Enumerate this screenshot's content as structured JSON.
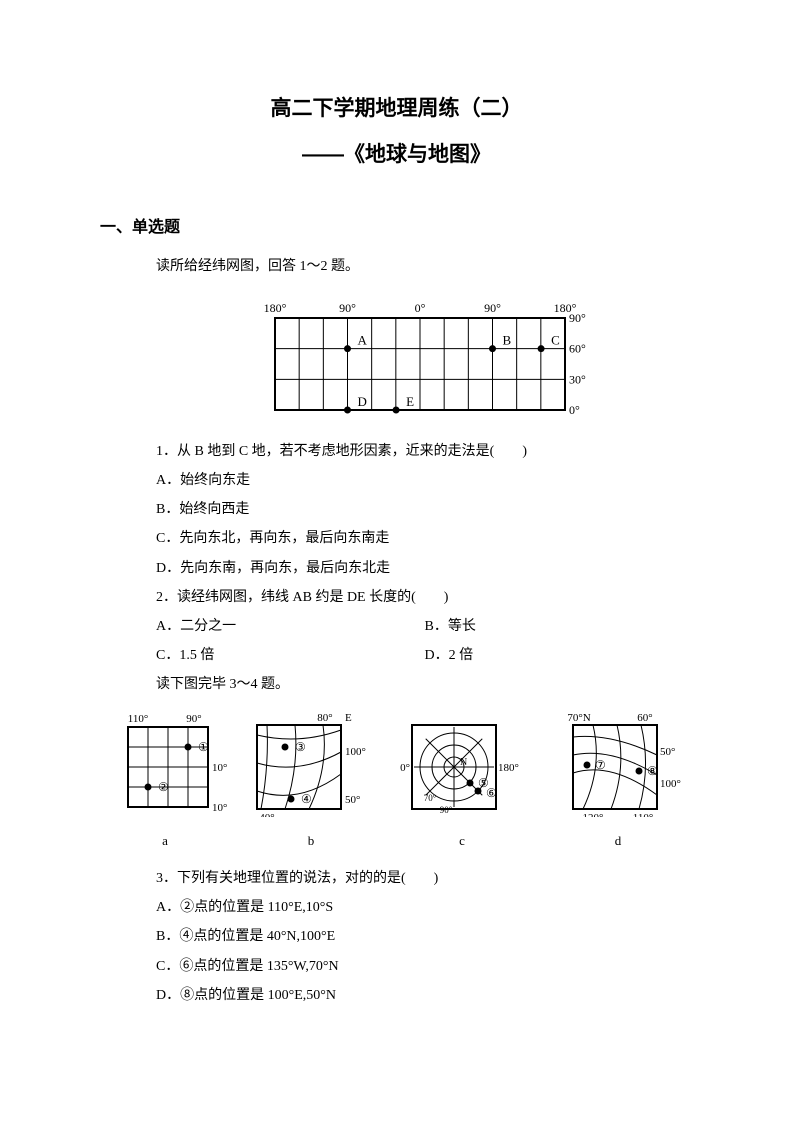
{
  "title_main": "高二下学期地理周练（二）",
  "title_sub": "——《地球与地图》",
  "section1_header": "一、单选题",
  "intro1": "读所给经纬网图，回答 1～2 题。",
  "grid1": {
    "lon_labels": [
      "180°",
      "90°",
      "0°",
      "90°",
      "180°"
    ],
    "lat_labels": [
      "90°",
      "60°",
      "30°",
      "0°"
    ],
    "points": [
      {
        "label": "A",
        "col": 1,
        "row": 1
      },
      {
        "label": "B",
        "col": 3,
        "row": 1
      },
      {
        "label": "C",
        "col": 3.67,
        "row": 1
      },
      {
        "label": "D",
        "col": 1,
        "row": 3
      },
      {
        "label": "E",
        "col": 1.67,
        "row": 3
      }
    ],
    "stroke": "#000000",
    "point_radius": 3.5
  },
  "q1": {
    "text": "1．从 B 地到 C 地，若不考虑地形因素，近来的走法是(　　)",
    "opts": [
      "A．始终向东走",
      "B．始终向西走",
      "C．先向东北，再向东，最后向东南走",
      "D．先向东南，再向东，最后向东北走"
    ]
  },
  "q2": {
    "text": "2．读经纬网图，纬线 AB 约是 DE 长度的(　　)",
    "opts": [
      "A．二分之一",
      "B．等长",
      "C．1.5 倍",
      "D．2 倍"
    ]
  },
  "intro2": "读下图完毕 3～4 题。",
  "diagrams4": {
    "labels": [
      "a",
      "b",
      "c",
      "d"
    ],
    "a": {
      "lon_top": [
        "110°",
        "90°"
      ],
      "lat_right": "10°",
      "lat_bottom": "10°",
      "pts": [
        "①",
        "②"
      ]
    },
    "b": {
      "top": "80°",
      "right": [
        "100°",
        "50°"
      ],
      "bottom": "40°",
      "side": "E",
      "pts": [
        "③",
        "④"
      ]
    },
    "c": {
      "left": "0°",
      "right": "180°",
      "inner": [
        "N",
        "90°",
        "70°"
      ],
      "pts": [
        "⑤",
        "⑥"
      ]
    },
    "d": {
      "top": [
        "70°N",
        "60°"
      ],
      "right": [
        "50°",
        "100°"
      ],
      "bottom": [
        "120°",
        "110°"
      ],
      "pts": [
        "⑦",
        "⑧"
      ]
    },
    "stroke": "#000000"
  },
  "q3": {
    "text": "3．下列有关地理位置的说法，对的的是(　　)",
    "opts": [
      "A．②点的位置是 110°E,10°S",
      "B．④点的位置是 40°N,100°E",
      "C．⑥点的位置是 135°W,70°N",
      "D．⑧点的位置是 100°E,50°N"
    ]
  }
}
